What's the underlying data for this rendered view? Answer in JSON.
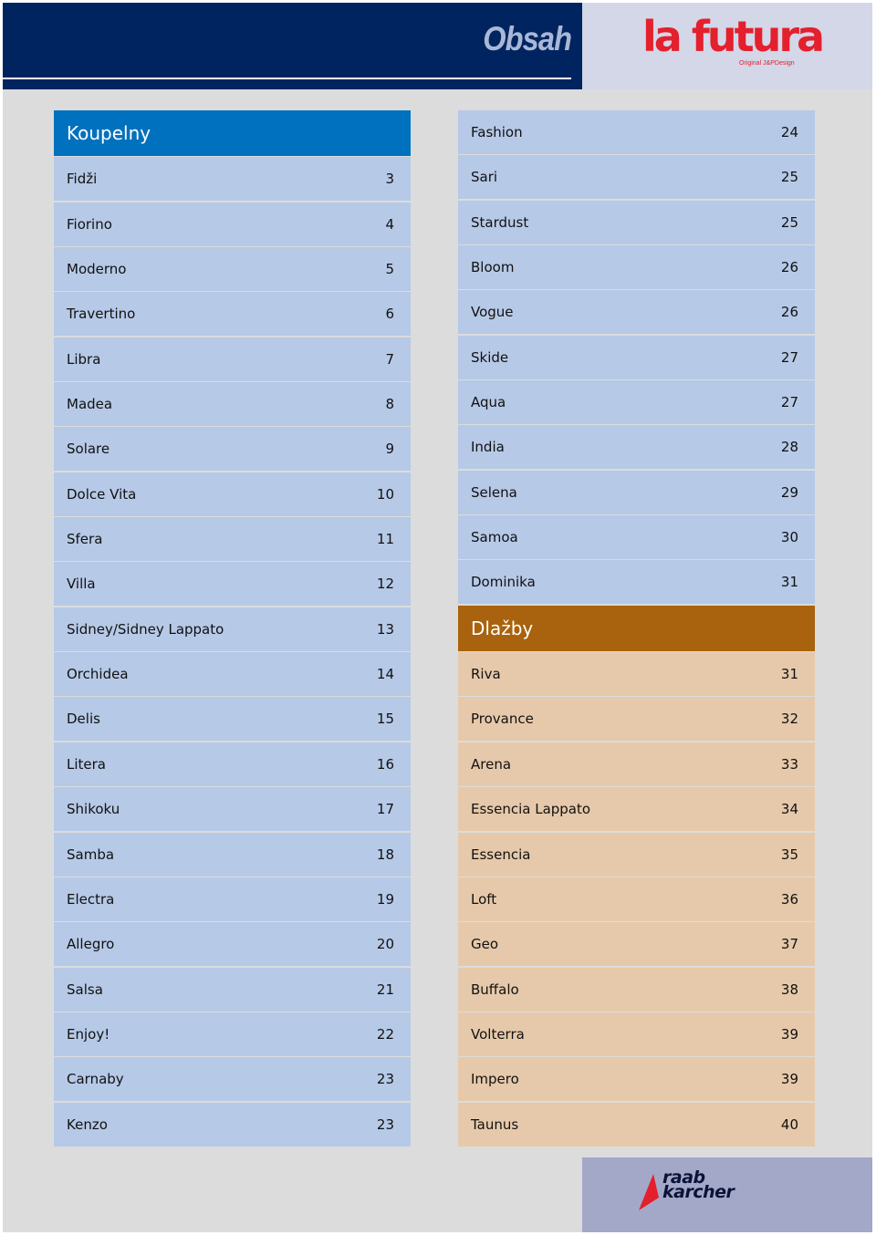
{
  "header": {
    "title": "Obsah",
    "logo_text": "la futura",
    "logo_tagline": "Original J&PDesign"
  },
  "colors": {
    "navy": "#00245f",
    "koupelny_head": "#0071be",
    "koupelny_row": "#b6c9e7",
    "dlazby_head": "#a9620d",
    "dlazby_row": "#e6c9aa",
    "brand_red": "#e3202c"
  },
  "koupelny": {
    "title": "Koupelny",
    "items": [
      {
        "label": "Fidži",
        "page": "3"
      },
      {
        "label": "Fiorino",
        "page": "4"
      },
      {
        "label": "Moderno",
        "page": "5"
      },
      {
        "label": "Travertino",
        "page": "6"
      },
      {
        "label": "Libra",
        "page": "7"
      },
      {
        "label": "Madea",
        "page": "8"
      },
      {
        "label": "Solare",
        "page": "9"
      },
      {
        "label": "Dolce Vita",
        "page": "10"
      },
      {
        "label": "Sfera",
        "page": "11"
      },
      {
        "label": "Villa",
        "page": "12"
      },
      {
        "label": "Sidney/Sidney Lappato",
        "page": "13"
      },
      {
        "label": "Orchidea",
        "page": "14"
      },
      {
        "label": "Delis",
        "page": "15"
      },
      {
        "label": "Litera",
        "page": "16"
      },
      {
        "label": "Shikoku",
        "page": "17"
      },
      {
        "label": "Samba",
        "page": "18"
      },
      {
        "label": "Electra",
        "page": "19"
      },
      {
        "label": "Allegro",
        "page": "20"
      },
      {
        "label": "Salsa",
        "page": "21"
      },
      {
        "label": "Enjoy!",
        "page": "22"
      },
      {
        "label": "Carnaby",
        "page": "23"
      },
      {
        "label": "Kenzo",
        "page": "23"
      }
    ],
    "continued": [
      {
        "label": "Fashion",
        "page": "24"
      },
      {
        "label": "Sari",
        "page": "25"
      },
      {
        "label": "Stardust",
        "page": "25"
      },
      {
        "label": "Bloom",
        "page": "26"
      },
      {
        "label": "Vogue",
        "page": "26"
      },
      {
        "label": "Skide",
        "page": "27"
      },
      {
        "label": "Aqua",
        "page": "27"
      },
      {
        "label": "India",
        "page": "28"
      },
      {
        "label": "Selena",
        "page": "29"
      },
      {
        "label": "Samoa",
        "page": "30"
      },
      {
        "label": "Dominika",
        "page": "31"
      }
    ]
  },
  "dlazby": {
    "title": "Dlažby",
    "items": [
      {
        "label": "Riva",
        "page": "31"
      },
      {
        "label": "Provance",
        "page": "32"
      },
      {
        "label": "Arena",
        "page": "33"
      },
      {
        "label": "Essencia Lappato",
        "page": "34"
      },
      {
        "label": "Essencia",
        "page": "35"
      },
      {
        "label": "Loft",
        "page": "36"
      },
      {
        "label": "Geo",
        "page": "37"
      },
      {
        "label": "Buffalo",
        "page": "38"
      },
      {
        "label": "Volterra",
        "page": "39"
      },
      {
        "label": "Impero",
        "page": "39"
      },
      {
        "label": "Taunus",
        "page": "40"
      }
    ]
  },
  "footer": {
    "logo_line1": "raab",
    "logo_line2": "karcher"
  }
}
